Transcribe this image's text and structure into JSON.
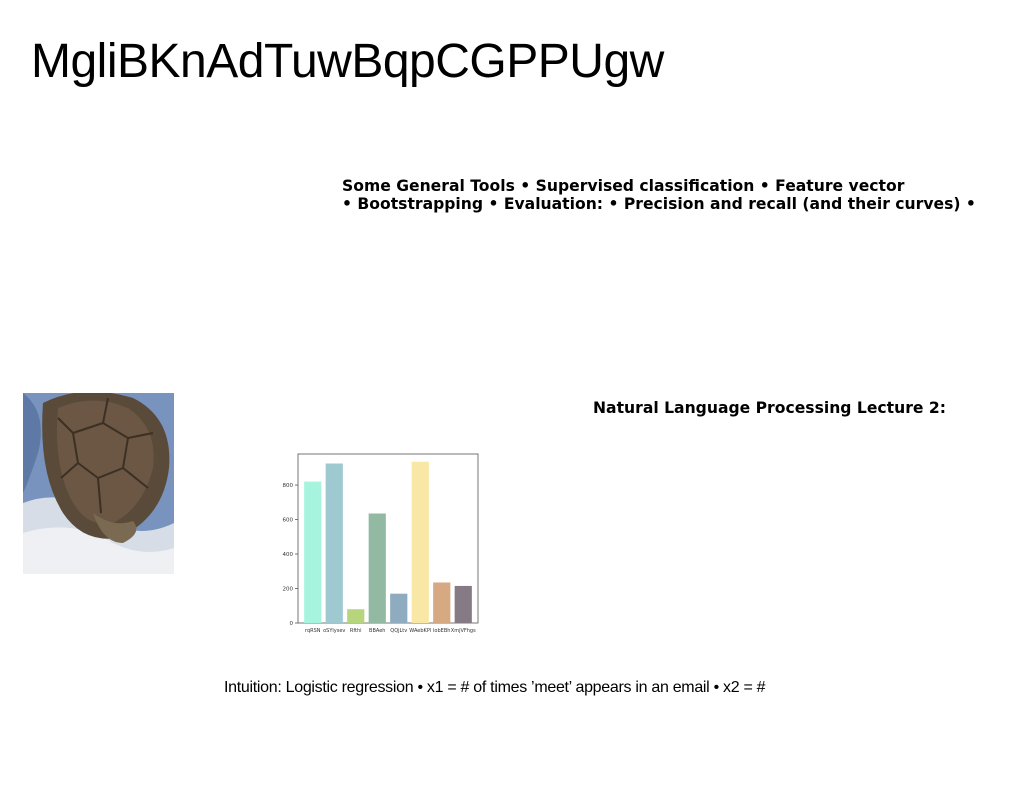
{
  "slide": {
    "title": "MgliBKnAdTuwBqpCGPPUgw",
    "tools_line1": "Some General Tools • Supervised classification • Feature vector",
    "tools_line2": "• Bootstrapping • Evaluation: • Precision and recall (and their curves) •",
    "heading2": "Natural Language Processing Lecture 2:",
    "intuition": "Intuition: Logistic regression • x1 = # of times ’meet’ appears in an email • x2 = #"
  },
  "photo": {
    "icon": "tortoise-shell-photo"
  },
  "chart_data": {
    "type": "bar",
    "categories": [
      "rqRSN",
      "oSYlysev",
      "Rfthi",
      "BBAeh",
      "QQjLtv",
      "WAebKPl",
      "lobEBh",
      "XmjVFhgs"
    ],
    "values": [
      820,
      925,
      80,
      635,
      170,
      935,
      235,
      215
    ],
    "colors": [
      "#a6f4dd",
      "#9fc9d0",
      "#b7d57d",
      "#92b9a2",
      "#8eabbf",
      "#f9e7a6",
      "#d6a983",
      "#857a85"
    ],
    "y_ticks": [
      "0",
      "200",
      "400",
      "600",
      "800"
    ],
    "ylim": [
      0,
      980
    ],
    "grid": false
  }
}
